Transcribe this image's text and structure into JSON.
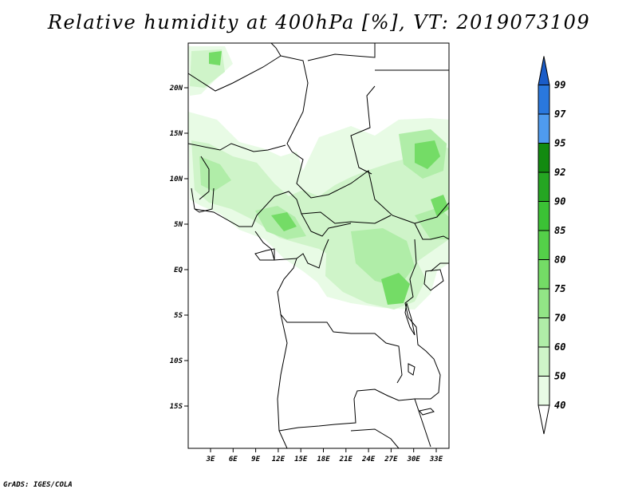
{
  "title": "Relative humidity at 400hPa [%], VT: 2019073109",
  "credit": "GrADS: IGES/COLA",
  "map": {
    "lon_range": [
      0,
      35
    ],
    "lat_range": [
      -20,
      24
    ],
    "lat_labels": [
      "20N",
      "15N",
      "10N",
      "5N",
      "EQ",
      "5S",
      "10S",
      "15S"
    ],
    "lon_labels": [
      "3E",
      "6E",
      "9E",
      "12E",
      "15E",
      "18E",
      "21E",
      "24E",
      "27E",
      "30E",
      "33E"
    ]
  },
  "colorbar": {
    "levels": [
      "40",
      "50",
      "60",
      "70",
      "75",
      "80",
      "85",
      "90",
      "92",
      "95",
      "97",
      "99"
    ],
    "colors": [
      "#ffffff",
      "#e8fbe5",
      "#cff4c9",
      "#b0eda8",
      "#92e586",
      "#74dc66",
      "#54d049",
      "#3bc235",
      "#25a622",
      "#128a10",
      "#4f9bef",
      "#2a78de",
      "#1a5cc8"
    ]
  },
  "colors": {
    "humid_light": "#e8fbe5",
    "humid_mid": "#b0eda8",
    "humid_strong": "#54d049"
  }
}
